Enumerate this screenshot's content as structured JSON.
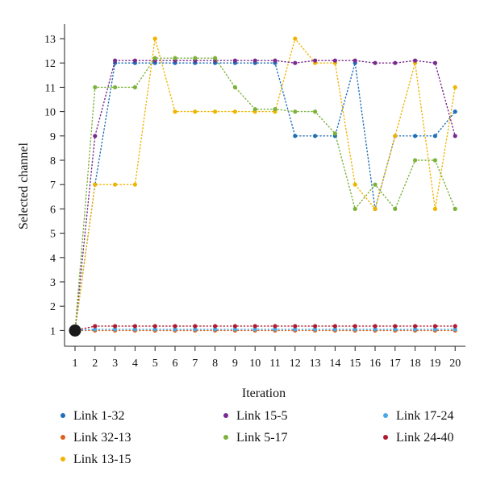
{
  "chart_data": {
    "type": "scatter",
    "xlabel": "Iteration",
    "ylabel": "Selected channel",
    "xlim": [
      1,
      20
    ],
    "ylim": [
      0,
      13
    ],
    "x": [
      1,
      2,
      3,
      4,
      5,
      6,
      7,
      8,
      9,
      10,
      11,
      12,
      13,
      14,
      15,
      16,
      17,
      18,
      19,
      20
    ],
    "xticks": [
      1,
      2,
      3,
      4,
      5,
      6,
      7,
      8,
      9,
      10,
      11,
      12,
      13,
      14,
      15,
      16,
      17,
      18,
      19,
      20
    ],
    "yticks": [
      1,
      2,
      3,
      4,
      5,
      6,
      7,
      8,
      9,
      10,
      11,
      12,
      13
    ],
    "grid": false,
    "line_style": "dotted",
    "legend_position": "bottom",
    "start_marker": {
      "x": 1,
      "y": 1,
      "color": "#1a1a1a"
    },
    "series": [
      {
        "name": "Link 1-32",
        "color": "#1f6fb8",
        "values": [
          1,
          7,
          12,
          12,
          12,
          12,
          12,
          12,
          12,
          12,
          12,
          9,
          9,
          9,
          12,
          6,
          9,
          9,
          9,
          10
        ]
      },
      {
        "name": "Link 32-13",
        "color": "#e0611c",
        "values": [
          1,
          1,
          1,
          1,
          1,
          1,
          1,
          1,
          1,
          1,
          1,
          1,
          1,
          1,
          1,
          1,
          1,
          1,
          1,
          1
        ]
      },
      {
        "name": "Link 13-15",
        "color": "#f0b400",
        "values": [
          1,
          7,
          7,
          7,
          13,
          10,
          10,
          10,
          10,
          10,
          10,
          13,
          12,
          12,
          7,
          6,
          9,
          12,
          6,
          11
        ]
      },
      {
        "name": "Link 15-5",
        "color": "#7a2a8e",
        "values": [
          1,
          9,
          12.1,
          12.1,
          12.1,
          12.1,
          12.1,
          12.1,
          12.1,
          12.1,
          12.1,
          12,
          12.1,
          12.1,
          12.1,
          12,
          12,
          12.1,
          12,
          9
        ]
      },
      {
        "name": "Link 5-17",
        "color": "#7cb23a",
        "values": [
          1,
          11,
          11,
          11,
          12.2,
          12.2,
          12.2,
          12.2,
          11,
          10.1,
          10.1,
          10,
          10,
          9.1,
          6,
          7,
          6,
          8,
          8,
          6
        ]
      },
      {
        "name": "Link 17-24",
        "color": "#47a9e6",
        "values": [
          1,
          1.05,
          1.05,
          1.05,
          1.05,
          1.05,
          1.05,
          1.05,
          1.05,
          1.05,
          1.05,
          1.05,
          1.05,
          1.05,
          1.05,
          1.05,
          1.05,
          1.05,
          1.05,
          1.05
        ]
      },
      {
        "name": "Link 24-40",
        "color": "#b0182e",
        "values": [
          1,
          1.18,
          1.18,
          1.18,
          1.18,
          1.18,
          1.18,
          1.18,
          1.18,
          1.18,
          1.18,
          1.18,
          1.18,
          1.18,
          1.18,
          1.18,
          1.18,
          1.18,
          1.18,
          1.18
        ]
      }
    ],
    "legend_order": [
      0,
      3,
      5,
      1,
      4,
      6,
      2
    ]
  }
}
